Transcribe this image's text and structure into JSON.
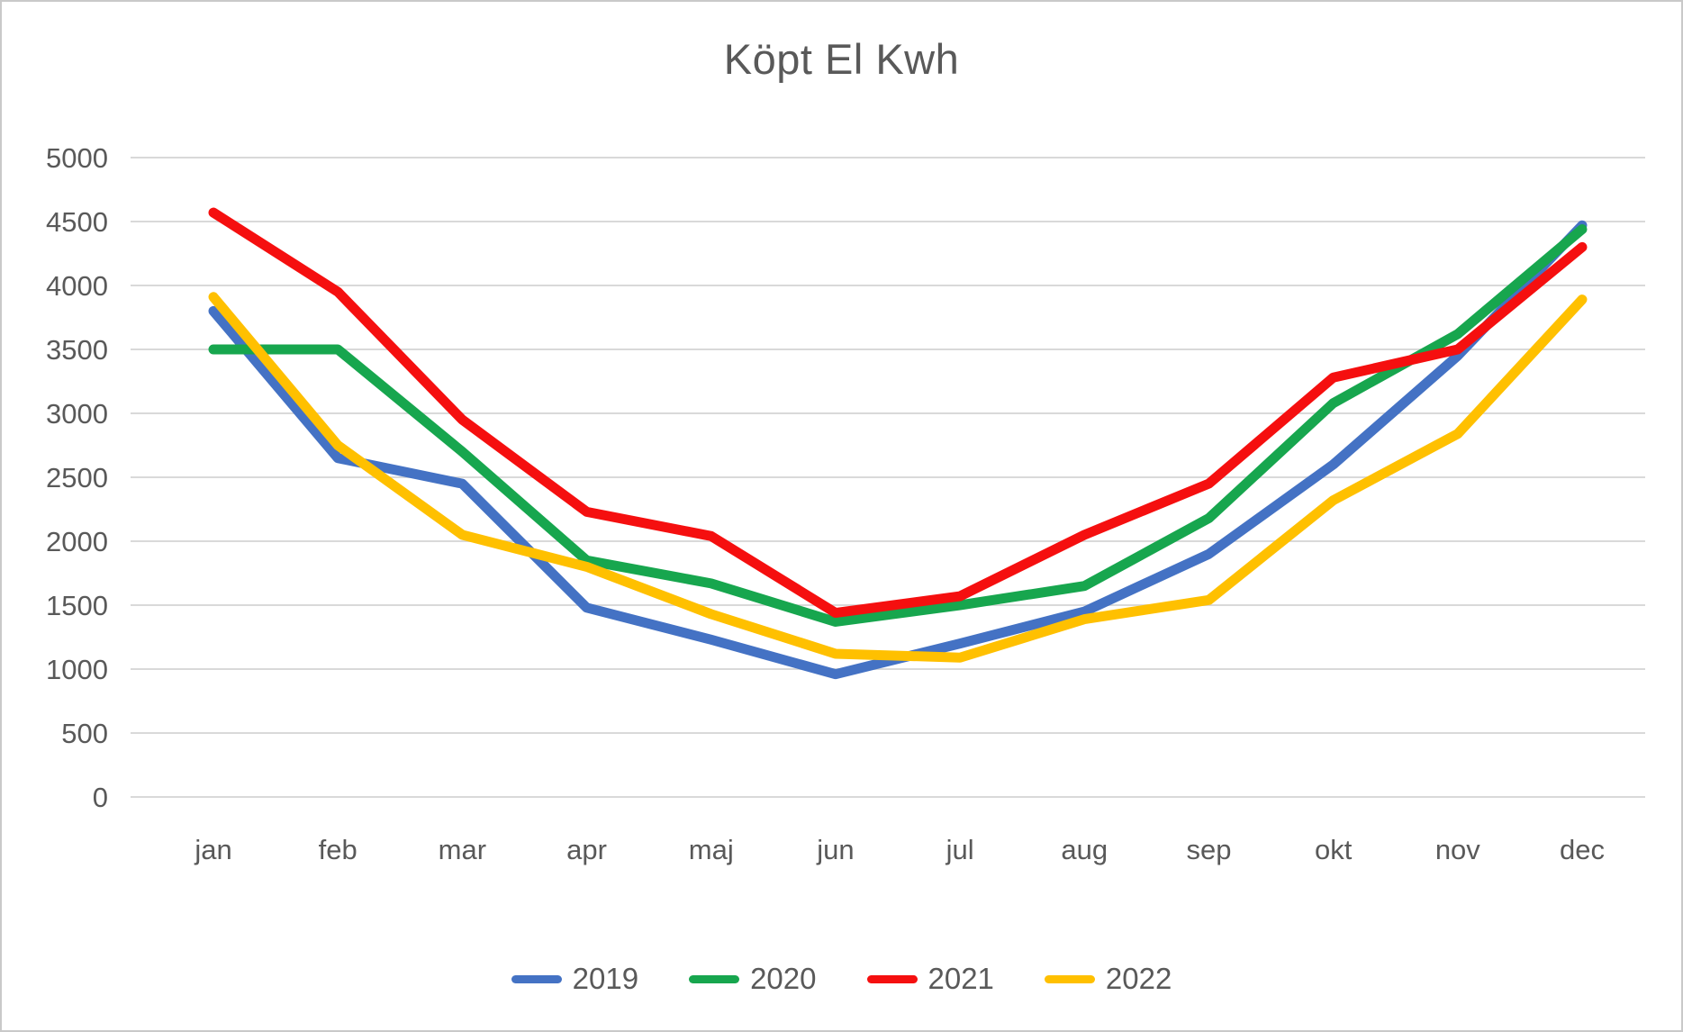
{
  "chart_data": {
    "type": "line",
    "title": "Köpt El Kwh",
    "xlabel": "",
    "ylabel": "",
    "categories": [
      "jan",
      "feb",
      "mar",
      "apr",
      "maj",
      "jun",
      "jul",
      "aug",
      "sep",
      "okt",
      "nov",
      "dec"
    ],
    "series": [
      {
        "name": "2019",
        "color": "#4472C4",
        "values": [
          3800,
          2650,
          2450,
          1480,
          1230,
          960,
          1200,
          1450,
          1900,
          2600,
          3450,
          4470
        ]
      },
      {
        "name": "2020",
        "color": "#17A64E",
        "values": [
          3500,
          3500,
          2700,
          1850,
          1670,
          1370,
          1500,
          1650,
          2180,
          3080,
          3620,
          4440
        ]
      },
      {
        "name": "2021",
        "color": "#F50F0F",
        "values": [
          4570,
          3950,
          2950,
          2230,
          2040,
          1440,
          1570,
          2050,
          2450,
          3280,
          3500,
          4300
        ]
      },
      {
        "name": "2022",
        "color": "#FFC000",
        "values": [
          3910,
          2750,
          2050,
          1800,
          1430,
          1120,
          1090,
          1390,
          1540,
          2320,
          2840,
          3890
        ]
      }
    ],
    "ylim": [
      0,
      5000
    ],
    "ytick_step": 500,
    "grid": true,
    "grid_color": "#D9D9D9",
    "text_color": "#595959",
    "legend_position": "bottom"
  }
}
